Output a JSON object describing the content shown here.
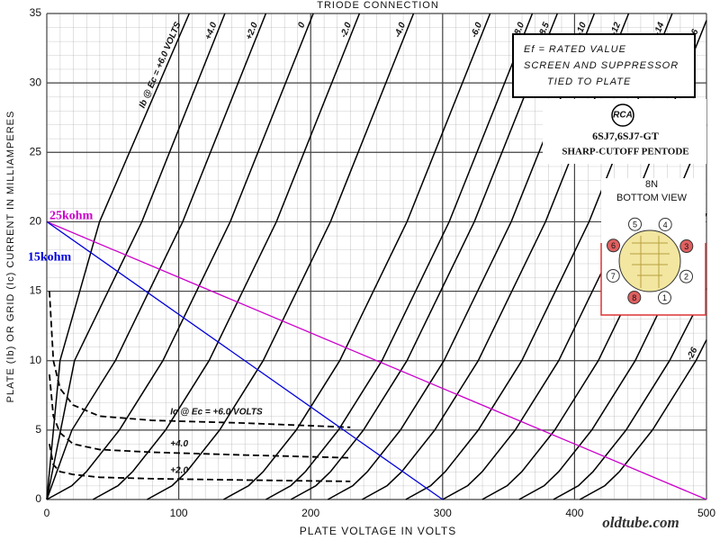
{
  "chart_data": {
    "type": "line",
    "title": "TRIODE CONNECTION",
    "x_label": "PLATE VOLTAGE IN VOLTS",
    "y_label": "PLATE (Ib) OR GRID (Ic) CURRENT IN MILLIAMPERES",
    "xlim": [
      0,
      500
    ],
    "ylim": [
      0,
      35
    ],
    "xticks": [
      0,
      100,
      200,
      300,
      400,
      500
    ],
    "yticks": [
      0,
      5,
      10,
      15,
      20,
      25,
      30,
      35
    ],
    "grid": true,
    "series": [
      {
        "name": "Ib @ Ec = +6.0 VOLTS",
        "color": "#000000",
        "style": "solid",
        "x": [
          0,
          10,
          40,
          108
        ],
        "values": [
          0,
          10,
          20,
          35
        ]
      },
      {
        "name": "+4.0",
        "color": "#000000",
        "style": "solid",
        "x": [
          0,
          21,
          72,
          135
        ],
        "values": [
          0,
          10,
          20,
          35
        ]
      },
      {
        "name": "+2.0",
        "color": "#000000",
        "style": "solid",
        "x": [
          0,
          19,
          52,
          103,
          166
        ],
        "values": [
          0,
          5,
          10,
          20,
          35
        ]
      },
      {
        "name": "0",
        "color": "#000000",
        "style": "solid",
        "x": [
          0,
          19,
          30,
          55,
          88,
          139,
          202
        ],
        "values": [
          0,
          1,
          2,
          5,
          10,
          20,
          35
        ]
      },
      {
        "name": "-2.0",
        "color": "#000000",
        "style": "solid",
        "x": [
          35,
          54,
          65,
          90,
          123,
          174,
          237
        ],
        "values": [
          0,
          1,
          2,
          5,
          10,
          20,
          35
        ]
      },
      {
        "name": "-4.0",
        "color": "#000000",
        "style": "solid",
        "x": [
          76,
          95,
          106,
          131,
          164,
          215,
          278
        ],
        "values": [
          0,
          1,
          2,
          5,
          10,
          20,
          35
        ]
      },
      {
        "name": "-6.0",
        "color": "#000000",
        "style": "solid",
        "x": [
          134,
          153,
          164,
          189,
          222,
          273,
          336
        ],
        "values": [
          0,
          1,
          2,
          5,
          10,
          20,
          35
        ]
      },
      {
        "name": "-8.0",
        "color": "#000000",
        "style": "solid",
        "x": [
          166,
          185,
          196,
          221,
          254,
          305,
          368
        ],
        "values": [
          0,
          1,
          2,
          5,
          10,
          20,
          35
        ]
      },
      {
        "name": "-8.5",
        "color": "#000000",
        "style": "solid",
        "x": [
          185,
          204,
          215,
          240,
          273,
          324,
          387
        ],
        "values": [
          0,
          1,
          2,
          5,
          10,
          20,
          35
        ]
      },
      {
        "name": "-10",
        "color": "#000000",
        "style": "solid",
        "x": [
          213,
          232,
          243,
          268,
          301,
          352,
          415
        ],
        "values": [
          0,
          1,
          2,
          5,
          10,
          20,
          35
        ]
      },
      {
        "name": "-12",
        "color": "#000000",
        "style": "solid",
        "x": [
          239,
          258,
          269,
          294,
          327,
          378,
          441
        ],
        "values": [
          0,
          1,
          2,
          5,
          10,
          20,
          35
        ]
      },
      {
        "name": "-14",
        "color": "#000000",
        "style": "solid",
        "x": [
          272,
          291,
          302,
          327,
          360,
          411,
          474
        ],
        "values": [
          0,
          1,
          2,
          5,
          10,
          20,
          35
        ]
      },
      {
        "name": "-16",
        "color": "#000000",
        "style": "solid",
        "x": [
          300,
          319,
          330,
          355,
          388,
          439,
          500
        ],
        "values": [
          0,
          1,
          2,
          5,
          10,
          20,
          34.5
        ]
      },
      {
        "name": "-18",
        "color": "#000000",
        "style": "solid",
        "x": [
          330,
          349,
          360,
          385,
          418,
          469,
          500
        ],
        "values": [
          0,
          1,
          2,
          5,
          10,
          20,
          27
        ]
      },
      {
        "name": "-20",
        "color": "#000000",
        "style": "solid",
        "x": [
          358,
          377,
          388,
          413,
          446,
          500
        ],
        "values": [
          0,
          1,
          2,
          5,
          10,
          20.6
        ]
      },
      {
        "name": "-22",
        "color": "#000000",
        "style": "solid",
        "x": [
          384,
          403,
          414,
          439,
          472,
          500
        ],
        "values": [
          0,
          1,
          2,
          5,
          10,
          15.2
        ]
      },
      {
        "name": "-26",
        "color": "#000000",
        "style": "solid",
        "x": [
          404,
          423,
          434,
          459,
          492,
          500
        ],
        "values": [
          0,
          1,
          2,
          5,
          10,
          11.5
        ]
      },
      {
        "name": "Ic @ Ec = +6.0 VOLTS",
        "color": "#000000",
        "style": "dashed",
        "x": [
          2,
          5,
          10,
          20,
          40,
          80,
          150,
          230
        ],
        "values": [
          15,
          10,
          8,
          6.8,
          6,
          5.7,
          5.5,
          5.2
        ]
      },
      {
        "name": "+4.0",
        "color": "#000000",
        "style": "dashed",
        "x": [
          2,
          5,
          10,
          20,
          40,
          80,
          150,
          230
        ],
        "values": [
          9,
          6,
          4.8,
          4,
          3.6,
          3.4,
          3.2,
          3
        ]
      },
      {
        "name": "+2.0",
        "color": "#000000",
        "style": "dashed",
        "x": [
          2,
          5,
          10,
          20,
          40,
          80,
          150,
          230
        ],
        "values": [
          4,
          2.5,
          2,
          1.8,
          1.6,
          1.5,
          1.4,
          1.3
        ]
      },
      {
        "name": "25kohm",
        "color": "#cc00cc",
        "style": "load",
        "x": [
          0,
          500
        ],
        "values": [
          20,
          0
        ]
      },
      {
        "name": "15kohm",
        "color": "#0000dd",
        "style": "load",
        "x": [
          0,
          300
        ],
        "values": [
          20,
          0
        ]
      }
    ]
  },
  "notes": [
    "Ef = RATED VALUE",
    "SCREEN AND SUPPRESSOR",
    "TIED TO PLATE"
  ],
  "tube": {
    "brand": "RCA",
    "model": "6SJ7,6SJ7-GT",
    "description": "SHARP-CUTOFF PENTODE"
  },
  "base": {
    "code": "8N",
    "view": "BOTTOM VIEW",
    "pins": [
      "1",
      "2",
      "3",
      "4",
      "5",
      "6",
      "7",
      "8"
    ]
  },
  "watermark": "oldtube.com"
}
